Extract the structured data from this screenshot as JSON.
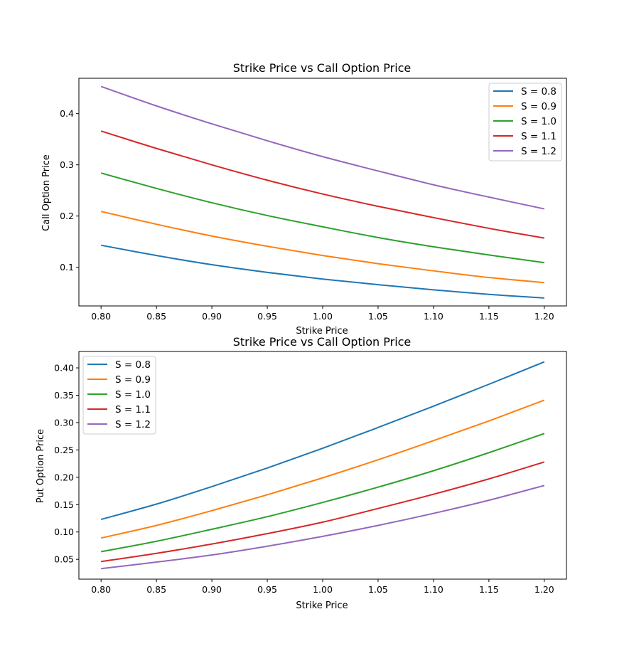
{
  "chart_data": [
    {
      "type": "line",
      "title": "Strike Price vs Call Option Price",
      "xlabel": "Strike Price",
      "ylabel": "Call Option Price",
      "xlim": [
        0.78,
        1.22
      ],
      "ylim": [
        0.0245,
        0.469
      ],
      "xticks": [
        "0.80",
        "0.85",
        "0.90",
        "0.95",
        "1.00",
        "1.05",
        "1.10",
        "1.15",
        "1.20"
      ],
      "yticks": [
        "0.1",
        "0.2",
        "0.3",
        "0.4"
      ],
      "grid": false,
      "legend_position": "top-right",
      "x": [
        0.8,
        0.85,
        0.9,
        0.95,
        1.0,
        1.05,
        1.1,
        1.15,
        1.2
      ],
      "series": [
        {
          "name": "S = 0.8",
          "color": "#1f77b4",
          "values": [
            0.143,
            0.123,
            0.105,
            0.09,
            0.077,
            0.066,
            0.056,
            0.047,
            0.04
          ]
        },
        {
          "name": "S = 0.9",
          "color": "#ff7f0e",
          "values": [
            0.209,
            0.184,
            0.161,
            0.141,
            0.123,
            0.107,
            0.093,
            0.08,
            0.07
          ]
        },
        {
          "name": "S = 1.0",
          "color": "#2ca02c",
          "values": [
            0.284,
            0.254,
            0.226,
            0.201,
            0.179,
            0.158,
            0.14,
            0.124,
            0.109
          ]
        },
        {
          "name": "S = 1.1",
          "color": "#d62728",
          "values": [
            0.366,
            0.332,
            0.3,
            0.27,
            0.243,
            0.219,
            0.197,
            0.176,
            0.157
          ]
        },
        {
          "name": "S = 1.2",
          "color": "#9467bd",
          "values": [
            0.453,
            0.415,
            0.38,
            0.347,
            0.316,
            0.288,
            0.261,
            0.237,
            0.214
          ]
        }
      ]
    },
    {
      "type": "line",
      "title": "Strike Price vs Call Option Price",
      "xlabel": "Strike Price",
      "ylabel": "Put Option Price",
      "xlim": [
        0.78,
        1.22
      ],
      "ylim": [
        0.0138,
        0.43
      ],
      "xticks": [
        "0.80",
        "0.85",
        "0.90",
        "0.95",
        "1.00",
        "1.05",
        "1.10",
        "1.15",
        "1.20"
      ],
      "yticks": [
        "0.05",
        "0.10",
        "0.15",
        "0.20",
        "0.25",
        "0.30",
        "0.35",
        "0.40"
      ],
      "grid": false,
      "legend_position": "top-left",
      "x": [
        0.8,
        0.85,
        0.9,
        0.95,
        1.0,
        1.05,
        1.1,
        1.15,
        1.2
      ],
      "series": [
        {
          "name": "S = 0.8",
          "color": "#1f77b4",
          "values": [
            0.123,
            0.151,
            0.183,
            0.217,
            0.253,
            0.291,
            0.33,
            0.37,
            0.411
          ]
        },
        {
          "name": "S = 0.9",
          "color": "#ff7f0e",
          "values": [
            0.089,
            0.112,
            0.139,
            0.168,
            0.199,
            0.232,
            0.267,
            0.303,
            0.341
          ]
        },
        {
          "name": "S = 1.0",
          "color": "#2ca02c",
          "values": [
            0.064,
            0.083,
            0.105,
            0.128,
            0.154,
            0.182,
            0.212,
            0.245,
            0.28
          ]
        },
        {
          "name": "S = 1.1",
          "color": "#d62728",
          "values": [
            0.046,
            0.061,
            0.078,
            0.097,
            0.118,
            0.143,
            0.169,
            0.197,
            0.228
          ]
        },
        {
          "name": "S = 1.2",
          "color": "#9467bd",
          "values": [
            0.033,
            0.045,
            0.058,
            0.074,
            0.092,
            0.112,
            0.134,
            0.158,
            0.185
          ]
        }
      ]
    }
  ]
}
